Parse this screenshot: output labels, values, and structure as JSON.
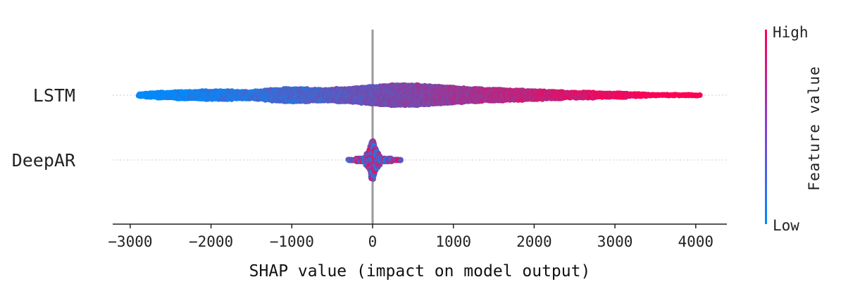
{
  "chart_data": {
    "type": "scatter",
    "subtype": "shap-beeswarm-summary",
    "title": "",
    "xlabel": "SHAP value (impact on model output)",
    "ylabel": "",
    "xlim": [
      -3300,
      4400
    ],
    "xticks": [
      -3000,
      -2000,
      -1000,
      0,
      1000,
      2000,
      3000,
      4000
    ],
    "xtick_labels": [
      "−3000",
      "−2000",
      "−1000",
      "0",
      "1000",
      "2000",
      "3000",
      "4000"
    ],
    "features": [
      "LSTM",
      "DeepAR"
    ],
    "series": [
      {
        "name": "LSTM",
        "shap_range": [
          -2900,
          4050
        ],
        "density_profile": [
          [
            -2900,
            2
          ],
          [
            -2600,
            4
          ],
          [
            -2300,
            5
          ],
          [
            -2000,
            6
          ],
          [
            -1500,
            5
          ],
          [
            -1200,
            8
          ],
          [
            -1000,
            9
          ],
          [
            -600,
            8
          ],
          [
            -300,
            9
          ],
          [
            0,
            12
          ],
          [
            300,
            14
          ],
          [
            500,
            14
          ],
          [
            800,
            12
          ],
          [
            1200,
            9
          ],
          [
            1500,
            8
          ],
          [
            2000,
            6
          ],
          [
            2500,
            4
          ],
          [
            3000,
            3
          ],
          [
            3300,
            2
          ],
          [
            3500,
            1
          ],
          [
            4050,
            1
          ]
        ],
        "feature_value_trend": "low values give negative SHAP, high values give positive SHAP"
      },
      {
        "name": "DeepAR",
        "shap_range": [
          -300,
          350
        ],
        "density_profile": [
          [
            -300,
            1
          ],
          [
            -100,
            2
          ],
          [
            -30,
            10
          ],
          [
            0,
            18
          ],
          [
            30,
            10
          ],
          [
            100,
            2
          ],
          [
            350,
            1
          ]
        ],
        "feature_value_trend": "mixed"
      }
    ],
    "colorbar": {
      "title": "Feature value",
      "high_label": "High",
      "low_label": "Low",
      "low_color": "#008bfb",
      "high_color": "#ff0052"
    },
    "zero_line": 0,
    "grid": false
  }
}
